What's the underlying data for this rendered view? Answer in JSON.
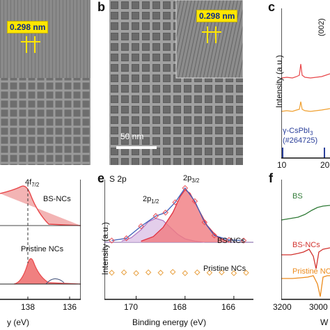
{
  "panels": {
    "a": {
      "letter": "",
      "lattice_label": "0.298 nm"
    },
    "b": {
      "letter": "b",
      "lattice_label": "0.298 nm",
      "scalebar": "50 nm"
    },
    "c": {
      "letter": "c",
      "ylabel": "Intensity (a.u.)",
      "peak_label": "(002)",
      "ref_label_1": "γ-CsPbI",
      "ref_label_sub": "3",
      "ref_label_2": "(#264725)",
      "xticks": [
        "10",
        "20"
      ],
      "colors": {
        "top": "#e8474a",
        "middle": "#f0a030",
        "ref": "#2a3f9a"
      }
    },
    "d": {
      "letter": "",
      "xlabel": "y (eV)",
      "xticks": [
        "138",
        "136"
      ],
      "peak_label": "4f",
      "peak_sub": "7/2",
      "series_labels": [
        "BS-NCs",
        "Pristine NCs"
      ]
    },
    "e": {
      "letter": "e",
      "title": "S 2p",
      "ylabel": "Intensity (a.u.)",
      "xlabel": "Binding energy (eV)",
      "xticks": [
        "170",
        "168",
        "166"
      ],
      "peak1": "2p",
      "peak1_sub": "1/2",
      "peak2": "2p",
      "peak2_sub": "3/2",
      "series_labels": [
        "BS-NCs",
        "Pristine NCs"
      ],
      "colors": {
        "bs": "#e8505a",
        "fit1": "#b27bc4",
        "fit2": "#e03040",
        "pristine": "#e8a040",
        "envelope": "#3e5fb8"
      }
    },
    "f": {
      "letter": "f",
      "xlabel": "W",
      "xticks": [
        "3200",
        "3000"
      ],
      "series_labels": [
        "BS",
        "BS-NCs",
        "Pristine NC"
      ],
      "colors": {
        "bs": "#2f7a36",
        "bsncs": "#d2332f",
        "pristine": "#ec8b1c"
      }
    }
  },
  "chart_data": [
    {
      "type": "line",
      "panel": "e",
      "title": "S 2p",
      "xlabel": "Binding energy (eV)",
      "ylabel": "Intensity (a.u.)",
      "xlim": [
        171.3,
        165.2
      ],
      "xticks": [
        170,
        168,
        166
      ],
      "series": [
        {
          "name": "2p1/2",
          "x": [
            170.6,
            170.2,
            169.8,
            169.5,
            169.2,
            168.9,
            168.6,
            168.3,
            168.0,
            167.6,
            167.2
          ],
          "values": [
            0.02,
            0.08,
            0.22,
            0.36,
            0.42,
            0.38,
            0.26,
            0.14,
            0.06,
            0.02,
            0.0
          ]
        },
        {
          "name": "2p3/2",
          "x": [
            169.8,
            169.3,
            168.9,
            168.5,
            168.2,
            168.0,
            167.8,
            167.5,
            167.1,
            166.7,
            166.3
          ],
          "values": [
            0.02,
            0.1,
            0.26,
            0.52,
            0.8,
            0.92,
            0.86,
            0.62,
            0.3,
            0.1,
            0.02
          ]
        },
        {
          "name": "BS-NCs",
          "x": [
            171.0,
            170.4,
            169.8,
            169.2,
            168.8,
            168.4,
            168.0,
            167.6,
            167.2,
            166.8,
            166.2,
            165.6
          ],
          "values": [
            0.03,
            0.07,
            0.28,
            0.46,
            0.52,
            0.7,
            0.95,
            0.72,
            0.35,
            0.12,
            0.04,
            0.03
          ]
        },
        {
          "name": "Pristine NCs",
          "x": [
            171.0,
            170.5,
            170.0,
            169.5,
            169.0,
            168.5,
            168.0,
            167.5,
            167.0,
            166.5,
            166.0,
            165.5
          ],
          "values": [
            0.02,
            0.03,
            0.01,
            0.03,
            0.02,
            0.04,
            0.01,
            0.03,
            0.02,
            0.03,
            0.01,
            0.02
          ]
        }
      ]
    }
  ]
}
